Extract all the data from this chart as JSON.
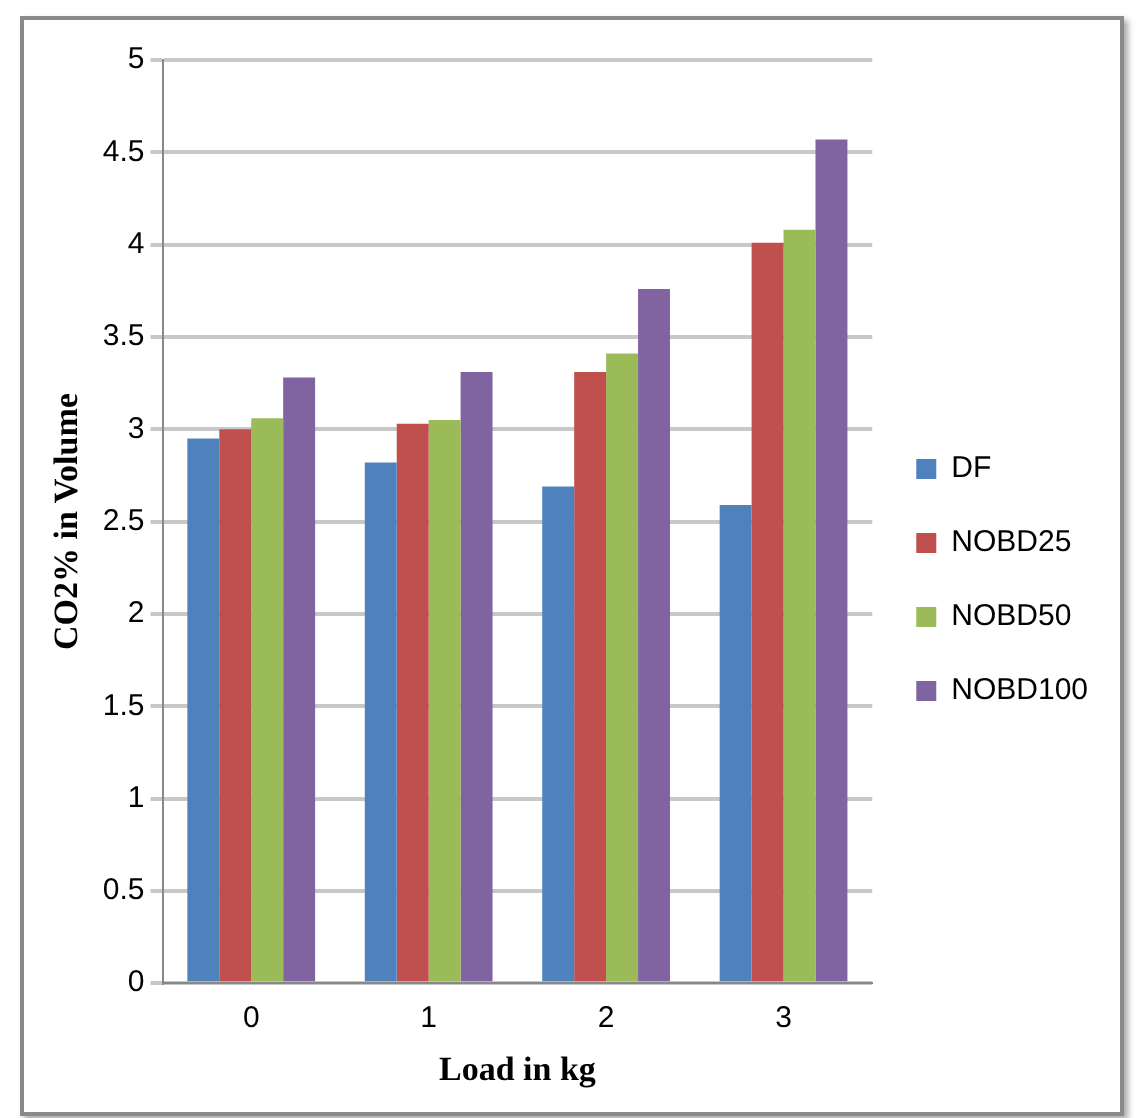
{
  "chart_data": {
    "type": "bar",
    "xlabel": "Load in kg",
    "ylabel": "CO2% in Volume",
    "categories": [
      "0",
      "1",
      "2",
      "3"
    ],
    "series": [
      {
        "name": "DF",
        "color": "#4f81bd",
        "values": [
          2.95,
          2.82,
          2.69,
          2.59
        ]
      },
      {
        "name": "NOBD25",
        "color": "#c0504d",
        "values": [
          3.0,
          3.03,
          3.31,
          4.01
        ]
      },
      {
        "name": "NOBD50",
        "color": "#9bbb59",
        "values": [
          3.06,
          3.05,
          3.41,
          4.08
        ]
      },
      {
        "name": "NOBD100",
        "color": "#8064a2",
        "values": [
          3.28,
          3.31,
          3.76,
          4.57
        ]
      }
    ],
    "ylim": [
      0,
      5
    ],
    "yticks": [
      0,
      0.5,
      1,
      1.5,
      2,
      2.5,
      3,
      3.5,
      4,
      4.5,
      5
    ],
    "grid": "y",
    "legend": "right"
  }
}
